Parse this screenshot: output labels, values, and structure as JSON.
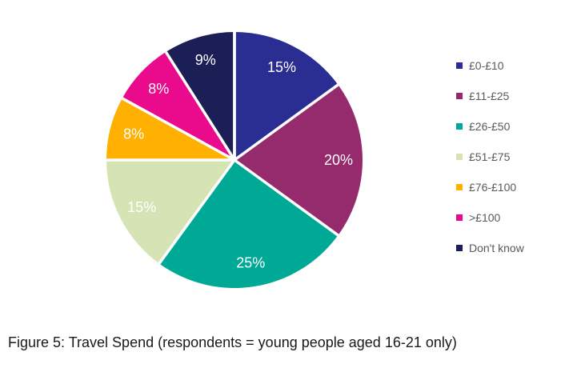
{
  "caption": "Figure 5: Travel Spend (respondents = young people aged 16-21 only)",
  "legend": {
    "position": "right",
    "text_color": "#595959"
  },
  "chart_data": {
    "type": "pie",
    "title": "",
    "categories": [
      "£0-£10",
      "£11-£25",
      "£26-£50",
      "£51-£75",
      "£76-£100",
      ">£100",
      "Don't know"
    ],
    "values": [
      15,
      20,
      25,
      15,
      8,
      8,
      9
    ],
    "slice_labels": [
      "15%",
      "20%",
      "25%",
      "15%",
      "8%",
      "8%",
      "9%"
    ],
    "colors": [
      "#2A2D91",
      "#952A6D",
      "#00A896",
      "#D6E3B4",
      "#FFB000",
      "#E90B8B",
      "#1C1F55"
    ],
    "start_angle_deg": 0,
    "direction": "clockwise",
    "slice_label_color": "#FFFFFF",
    "slice_border_color": "#FFFFFF",
    "legend_position": "right"
  }
}
